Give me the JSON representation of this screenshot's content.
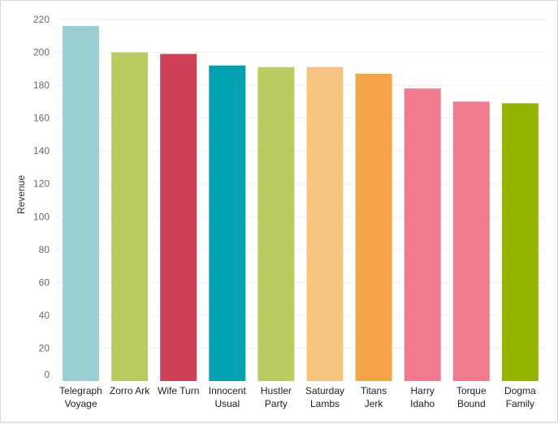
{
  "chart_data": {
    "type": "bar",
    "ylabel": "Revenue",
    "xlabel": "",
    "ylim": [
      0,
      220
    ],
    "yticks": [
      0,
      20,
      40,
      60,
      80,
      100,
      120,
      140,
      160,
      180,
      200,
      220
    ],
    "grid": "horizontal",
    "categories": [
      [
        "Telegraph",
        "Voyage"
      ],
      [
        "Zorro Ark"
      ],
      [
        "Wife Turn"
      ],
      [
        "Innocent",
        "Usual"
      ],
      [
        "Hustler",
        "Party"
      ],
      [
        "Saturday",
        "Lambs"
      ],
      [
        "Titans",
        "Jerk"
      ],
      [
        "Harry",
        "Idaho"
      ],
      [
        "Torque",
        "Bound"
      ],
      [
        "Dogma",
        "Family"
      ]
    ],
    "values": [
      216,
      200,
      199,
      192,
      191,
      191,
      187,
      178,
      170,
      169
    ],
    "colors": [
      "#9ad0d2",
      "#bccb5f",
      "#d03f58",
      "#00a2b2",
      "#bccb5f",
      "#f6c47e",
      "#f2a446",
      "#f27a8e",
      "#f27a8e",
      "#93b500"
    ]
  }
}
